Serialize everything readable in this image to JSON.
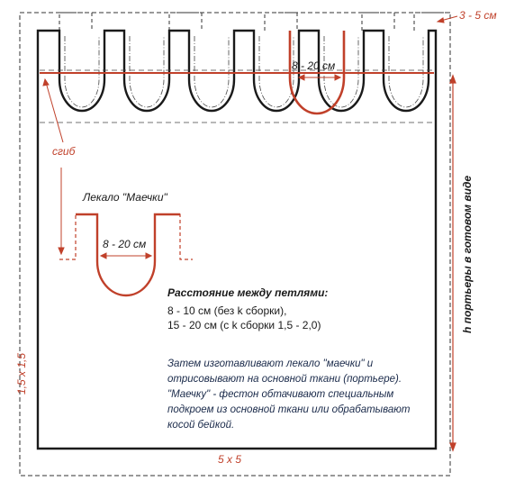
{
  "labels": {
    "top_right_allowance": "3 - 5 см",
    "loop_width_top": "8 - 20 см",
    "fold": "сгиб",
    "template_title": "Лекало \"Маечки\"",
    "loop_width_template": "8 - 20 см",
    "height": "h  портьеры в готовом виде",
    "left_allowance": "1,5 х 1,5",
    "bottom_allowance": "5 х 5"
  },
  "note": {
    "heading": "Расстояние между петлями:",
    "line1": "8 - 10 см (без k сборки),",
    "line2": "15 - 20 см (с k сборки 1,5 - 2,0)"
  },
  "paragraph": "Затем изготавливают лекало \"маечки\" и отрисовывают на основной ткани (портьере). \"Маечку\" - фестон обтачивают специальным подкроем из основной ткани или обрабатывают косой бейкой.",
  "colors": {
    "outline": "#1a1a1a",
    "accent": "#c0402a",
    "text": "#1a2a4a"
  }
}
